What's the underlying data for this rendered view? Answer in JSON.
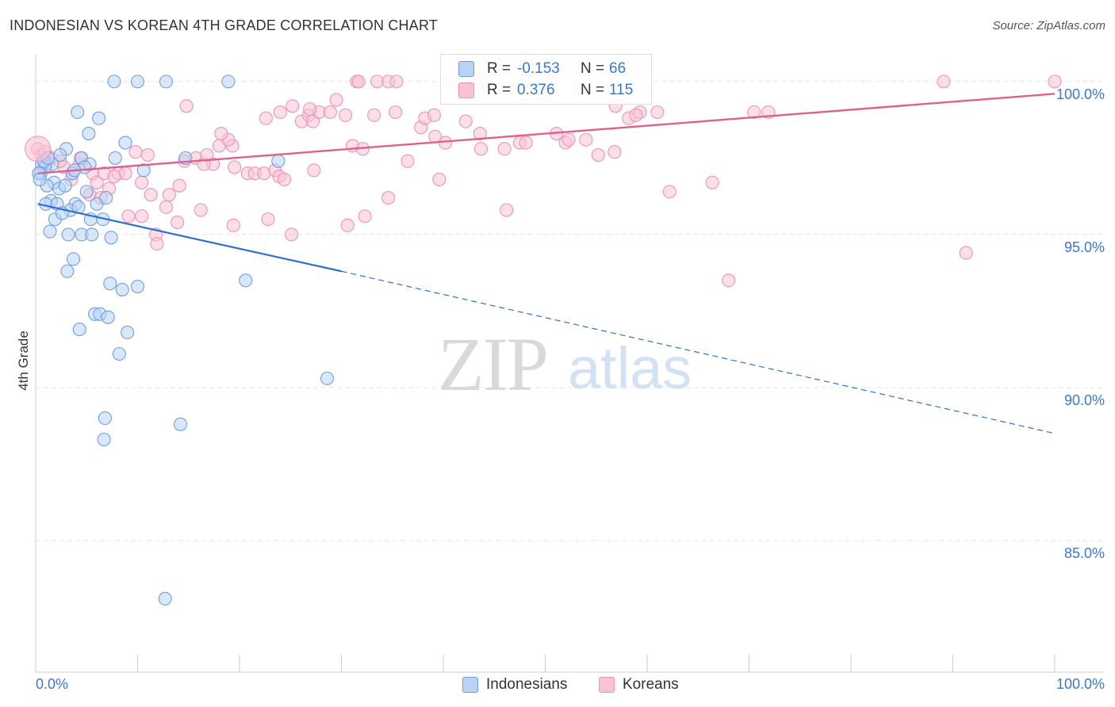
{
  "header": {
    "title": "INDONESIAN VS KOREAN 4TH GRADE CORRELATION CHART",
    "source": "Source: ZipAtlas.com"
  },
  "watermark": {
    "zip": "ZIP",
    "atlas": "atlas"
  },
  "legend": {
    "indonesians": {
      "r_label": "R =",
      "r_value": "-0.153",
      "n_label": "N =",
      "n_value": "66"
    },
    "koreans": {
      "r_label": "R =",
      "r_value": "0.376",
      "n_label": "N =",
      "n_value": "115"
    }
  },
  "colors": {
    "indonesians_fill": "#b9d3f5",
    "indonesians_stroke": "#6f9fe0",
    "indonesians_line": "#2e6fd3",
    "koreans_fill": "#f8c3d4",
    "koreans_stroke": "#ee94b2",
    "koreans_line": "#e0608c",
    "tick_text": "#3a78d6",
    "grid": "#e4e4e4"
  },
  "chart_data": {
    "type": "scatter",
    "xlabel": "",
    "ylabel": "4th Grade",
    "xlim": [
      0,
      100
    ],
    "ylim": [
      80.7,
      100.8
    ],
    "x_tick_labels": [
      "0.0%",
      "100.0%"
    ],
    "y_ticks": [
      85,
      90,
      95,
      100
    ],
    "y_tick_labels": [
      "85.0%",
      "90.0%",
      "95.0%",
      "100.0%"
    ],
    "grid": true,
    "legend_placement": "top-center",
    "series": [
      {
        "name": "Indonesians",
        "trend": {
          "x0": 0.2,
          "y0": 96.0,
          "x1": 30,
          "y1": 93.8,
          "dashed_to_x": 100,
          "dashed_to_y": 88.5
        },
        "points": [
          [
            7.7,
            100.0
          ],
          [
            10.0,
            100.0
          ],
          [
            12.8,
            100.0
          ],
          [
            18.9,
            100.0
          ],
          [
            4.1,
            99.0
          ],
          [
            6.2,
            98.8
          ],
          [
            5.2,
            98.3
          ],
          [
            8.8,
            98.0
          ],
          [
            3.0,
            97.8
          ],
          [
            2.4,
            97.6
          ],
          [
            4.5,
            97.5
          ],
          [
            7.8,
            97.5
          ],
          [
            14.7,
            97.5
          ],
          [
            23.8,
            97.4
          ],
          [
            0.6,
            97.3
          ],
          [
            1.6,
            97.3
          ],
          [
            5.3,
            97.3
          ],
          [
            0.9,
            97.2
          ],
          [
            4.8,
            97.2
          ],
          [
            10.6,
            97.1
          ],
          [
            0.5,
            97.0
          ],
          [
            0.3,
            97.0
          ],
          [
            1.8,
            96.7
          ],
          [
            1.1,
            96.6
          ],
          [
            2.3,
            96.5
          ],
          [
            1.5,
            96.1
          ],
          [
            3.9,
            96.0
          ],
          [
            1.0,
            96.0
          ],
          [
            2.1,
            96.0
          ],
          [
            6.0,
            96.0
          ],
          [
            3.4,
            95.8
          ],
          [
            4.2,
            95.9
          ],
          [
            1.9,
            95.5
          ],
          [
            5.4,
            95.5
          ],
          [
            6.6,
            95.5
          ],
          [
            1.4,
            95.1
          ],
          [
            3.2,
            95.0
          ],
          [
            4.5,
            95.0
          ],
          [
            5.5,
            95.0
          ],
          [
            7.4,
            94.9
          ],
          [
            3.7,
            94.2
          ],
          [
            3.1,
            93.8
          ],
          [
            20.6,
            93.5
          ],
          [
            7.3,
            93.4
          ],
          [
            10.0,
            93.3
          ],
          [
            8.5,
            93.2
          ],
          [
            5.8,
            92.4
          ],
          [
            6.3,
            92.4
          ],
          [
            7.1,
            92.3
          ],
          [
            4.3,
            91.9
          ],
          [
            9.0,
            91.8
          ],
          [
            8.2,
            91.1
          ],
          [
            28.6,
            90.3
          ],
          [
            6.8,
            89.0
          ],
          [
            14.2,
            88.8
          ],
          [
            6.7,
            88.3
          ],
          [
            12.7,
            83.1
          ],
          [
            0.8,
            97.4
          ],
          [
            2.9,
            96.6
          ],
          [
            3.6,
            97.0
          ],
          [
            1.2,
            97.5
          ],
          [
            2.6,
            95.7
          ],
          [
            5.0,
            96.4
          ],
          [
            0.4,
            96.8
          ],
          [
            3.8,
            97.1
          ],
          [
            6.9,
            96.2
          ]
        ]
      },
      {
        "name": "Koreans",
        "trend": {
          "x0": 0.2,
          "y0": 97.0,
          "x1": 100,
          "y1": 99.6
        },
        "points": [
          [
            0.2,
            97.8
          ],
          [
            0.6,
            97.6
          ],
          [
            1.5,
            97.5
          ],
          [
            1.0,
            97.3
          ],
          [
            2.8,
            97.2
          ],
          [
            4.3,
            97.3
          ],
          [
            3.6,
            97.0
          ],
          [
            5.6,
            97.0
          ],
          [
            6.7,
            97.0
          ],
          [
            8.1,
            97.0
          ],
          [
            8.8,
            97.0
          ],
          [
            10.4,
            96.7
          ],
          [
            7.7,
            96.9
          ],
          [
            5.3,
            96.3
          ],
          [
            6.4,
            96.2
          ],
          [
            7.2,
            96.5
          ],
          [
            11.3,
            96.3
          ],
          [
            14.1,
            96.6
          ],
          [
            13.1,
            96.3
          ],
          [
            12.8,
            95.9
          ],
          [
            9.1,
            95.6
          ],
          [
            10.4,
            95.6
          ],
          [
            16.2,
            95.8
          ],
          [
            13.9,
            95.4
          ],
          [
            11.8,
            95.0
          ],
          [
            11.9,
            94.7
          ],
          [
            19.4,
            95.3
          ],
          [
            22.8,
            95.5
          ],
          [
            25.1,
            95.0
          ],
          [
            30.6,
            95.3
          ],
          [
            32.3,
            95.6
          ],
          [
            34.6,
            96.2
          ],
          [
            39.6,
            96.8
          ],
          [
            46.2,
            95.8
          ],
          [
            62.2,
            96.4
          ],
          [
            66.4,
            96.7
          ],
          [
            68.0,
            93.5
          ],
          [
            91.3,
            94.4
          ],
          [
            9.8,
            97.7
          ],
          [
            15.7,
            97.5
          ],
          [
            17.4,
            97.3
          ],
          [
            18.0,
            97.9
          ],
          [
            19.3,
            97.9
          ],
          [
            18.9,
            98.1
          ],
          [
            18.2,
            98.3
          ],
          [
            19.5,
            97.2
          ],
          [
            20.8,
            97.0
          ],
          [
            21.5,
            97.0
          ],
          [
            22.4,
            97.0
          ],
          [
            23.5,
            97.1
          ],
          [
            23.9,
            96.9
          ],
          [
            27.3,
            97.1
          ],
          [
            22.6,
            98.8
          ],
          [
            24.0,
            99.0
          ],
          [
            25.2,
            99.2
          ],
          [
            26.1,
            98.7
          ],
          [
            26.8,
            98.9
          ],
          [
            27.2,
            98.7
          ],
          [
            27.8,
            99.0
          ],
          [
            29.5,
            99.4
          ],
          [
            28.9,
            99.0
          ],
          [
            30.4,
            98.9
          ],
          [
            31.1,
            97.9
          ],
          [
            32.1,
            97.8
          ],
          [
            33.2,
            98.9
          ],
          [
            35.3,
            99.0
          ],
          [
            36.5,
            97.4
          ],
          [
            37.8,
            98.5
          ],
          [
            38.2,
            98.8
          ],
          [
            39.1,
            98.9
          ],
          [
            39.2,
            98.2
          ],
          [
            40.2,
            98.0
          ],
          [
            42.2,
            98.7
          ],
          [
            43.6,
            98.3
          ],
          [
            43.7,
            97.8
          ],
          [
            46.0,
            97.8
          ],
          [
            47.5,
            98.0
          ],
          [
            48.1,
            98.0
          ],
          [
            51.1,
            98.3
          ],
          [
            52.0,
            98.0
          ],
          [
            52.3,
            98.1
          ],
          [
            54.0,
            98.1
          ],
          [
            55.2,
            97.6
          ],
          [
            56.8,
            97.7
          ],
          [
            58.2,
            98.8
          ],
          [
            59.3,
            99.0
          ],
          [
            61.0,
            99.0
          ],
          [
            70.5,
            99.0
          ],
          [
            71.9,
            99.0
          ],
          [
            89.1,
            100.0
          ],
          [
            100.0,
            100.0
          ],
          [
            31.5,
            100.0
          ],
          [
            33.5,
            100.0
          ],
          [
            34.6,
            100.0
          ],
          [
            35.4,
            100.0
          ],
          [
            40.6,
            100.0
          ],
          [
            43.6,
            100.0
          ],
          [
            48.0,
            100.0
          ],
          [
            50.4,
            100.0
          ],
          [
            53.2,
            99.8
          ],
          [
            56.9,
            99.2
          ],
          [
            58.9,
            98.9
          ],
          [
            14.8,
            99.2
          ],
          [
            11.0,
            97.6
          ],
          [
            0.9,
            97.7
          ],
          [
            2.4,
            97.4
          ],
          [
            3.5,
            96.8
          ],
          [
            4.4,
            97.5
          ],
          [
            6.0,
            96.7
          ],
          [
            16.5,
            97.3
          ],
          [
            16.8,
            97.6
          ],
          [
            14.6,
            97.4
          ],
          [
            24.4,
            96.8
          ],
          [
            26.9,
            99.1
          ],
          [
            31.7,
            100.0
          ]
        ]
      }
    ]
  },
  "bottom_legend": {
    "indonesians": "Indonesians",
    "koreans": "Koreans"
  }
}
